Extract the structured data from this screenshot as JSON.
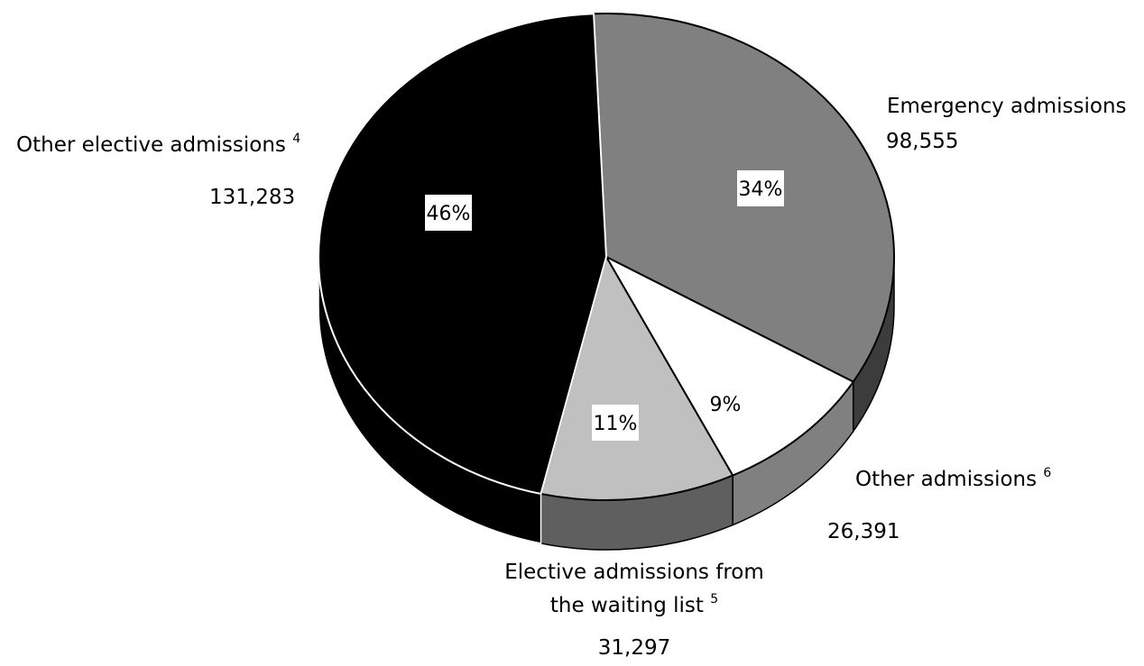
{
  "chart_data": {
    "type": "pie",
    "style": "3d",
    "slices": [
      {
        "label": "Emergency admissions",
        "value": 98555,
        "value_text": "98,555",
        "percent_label": "34%",
        "footnote": "",
        "color": "#808080"
      },
      {
        "label": "Other admissions",
        "value": 26391,
        "value_text": "26,391",
        "percent_label": "9%",
        "footnote": "6",
        "color": "#ffffff"
      },
      {
        "label": "Elective admissions from the waiting list",
        "label_lines": [
          "Elective admissions from",
          "the waiting list"
        ],
        "value": 31297,
        "value_text": "31,297",
        "percent_label": "11%",
        "footnote": "5",
        "color": "#c0c0c0"
      },
      {
        "label": "Other elective admissions",
        "value": 131283,
        "value_text": "131,283",
        "percent_label": "46%",
        "footnote": "4",
        "color": "#000000"
      }
    ]
  }
}
